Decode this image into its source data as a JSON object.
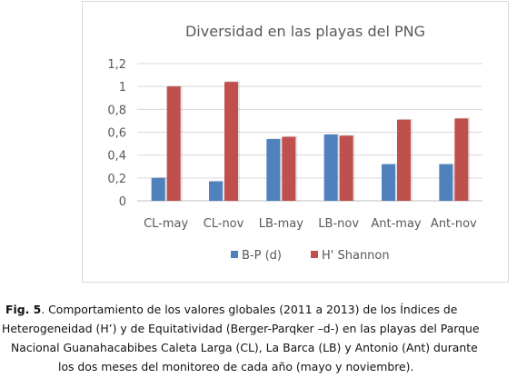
{
  "chart_data": {
    "type": "bar",
    "title": "Diversidad en las playas del PNG",
    "xlabel": "",
    "ylabel": "",
    "categories": [
      "CL-may",
      "CL-nov",
      "LB-may",
      "LB-nov",
      "Ant-may",
      "Ant-nov"
    ],
    "series": [
      {
        "name": "B-P (d)",
        "color": "#4f81bd",
        "values": [
          0.2,
          0.17,
          0.54,
          0.58,
          0.32,
          0.32
        ]
      },
      {
        "name": "H' Shannon",
        "color": "#c0504d",
        "values": [
          1.0,
          1.04,
          0.56,
          0.57,
          0.71,
          0.72
        ]
      }
    ],
    "ylim": [
      0,
      1.2
    ],
    "yticks": [
      "0",
      "0,2",
      "0,4",
      "0,6",
      "0,8",
      "1",
      "1,2"
    ],
    "grid": true,
    "legend_position": "bottom"
  },
  "caption": {
    "label": "Fig. 5",
    "line1": ". Comportamiento de los valores globales (2011 a 2013) de los Índices de",
    "line2": "Heterogeneidad (H’) y de Equitatividad  (Berger-Parqker –d-) en las playas del Parque",
    "line3": "Nacional Guanahacabibes Caleta Larga (CL), La Barca (LB) y Antonio (Ant) durante",
    "line4": "los dos meses del monitoreo de cada año (mayo y noviembre)."
  }
}
